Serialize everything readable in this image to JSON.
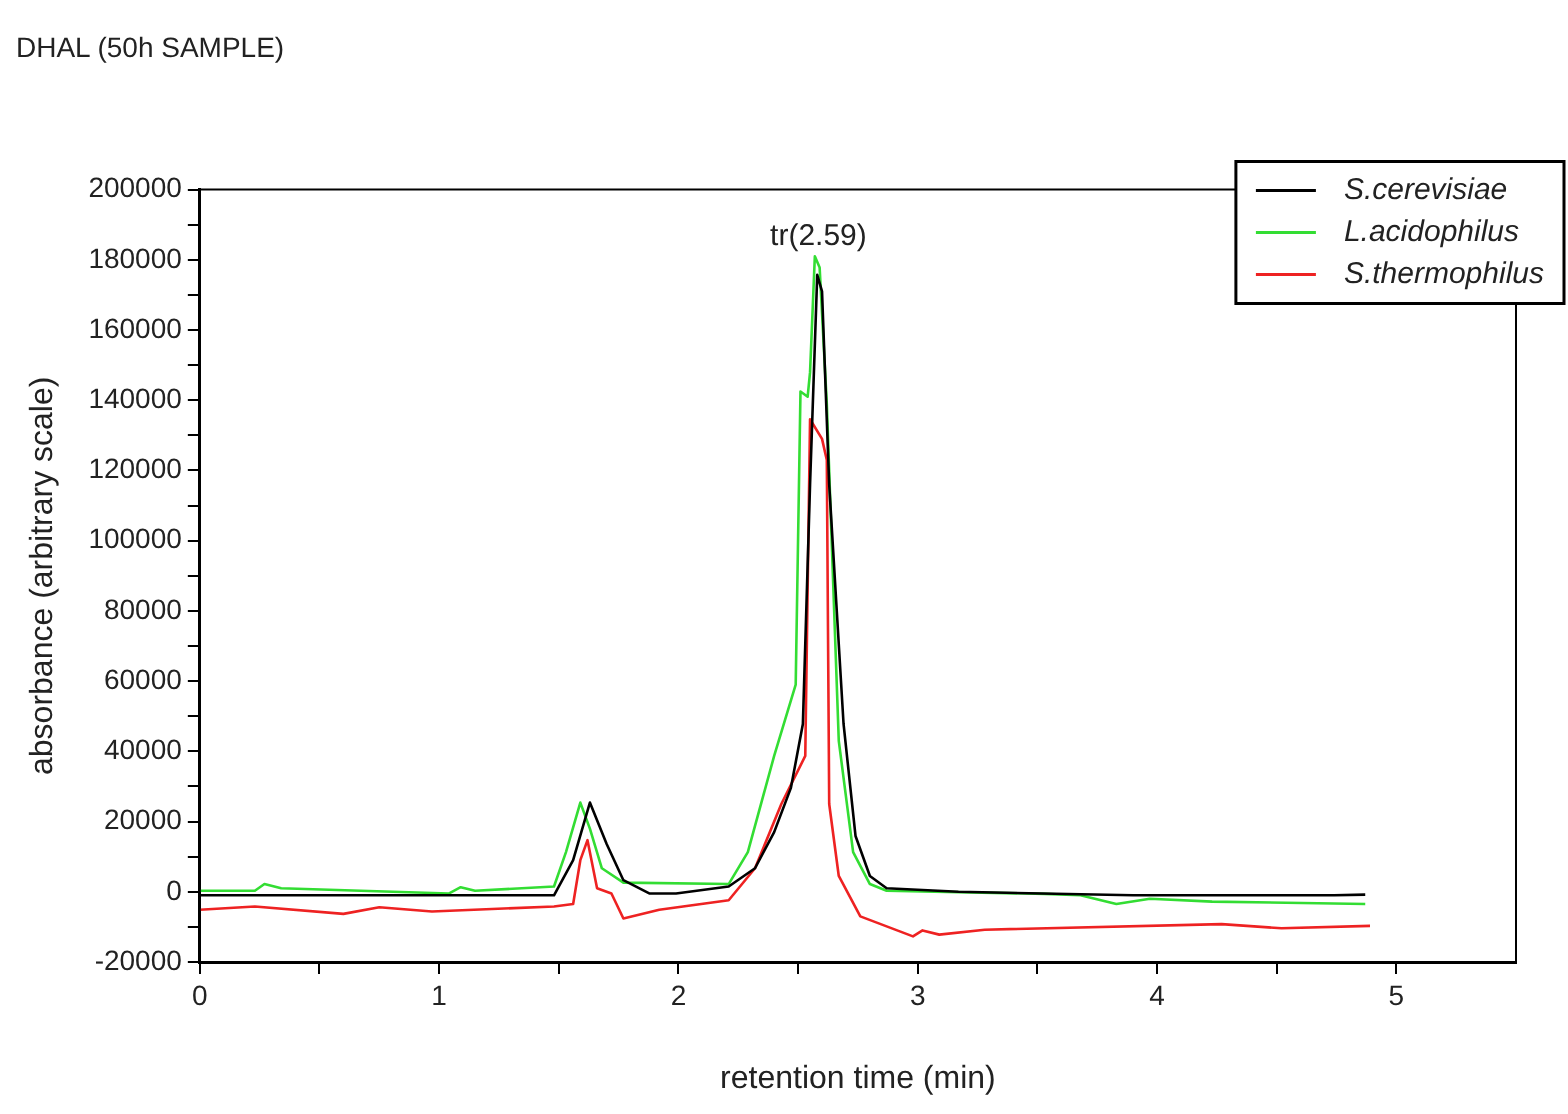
{
  "chart_data": {
    "type": "line",
    "title": "DHAL (50h SAMPLE)",
    "xlabel": "retention time (min)",
    "ylabel": "absorbance (arbitrary scale)",
    "xlim": [
      0,
      5.5
    ],
    "xticks": [
      0,
      {
        "value": 0.5,
        "label": null
      },
      1,
      {
        "value": 1.5,
        "label": null
      },
      2,
      {
        "value": 2.5,
        "label": null
      },
      3,
      {
        "value": 3.5,
        "label": null
      },
      4,
      {
        "value": 4.5,
        "label": null
      },
      5
    ],
    "ylim": [
      -20000,
      200000
    ],
    "yticks": [
      -20000,
      {
        "value": -10000,
        "label": null
      },
      0,
      {
        "value": 10000,
        "label": null
      },
      20000,
      {
        "value": 30000,
        "label": null
      },
      40000,
      {
        "value": 50000,
        "label": null
      },
      60000,
      {
        "value": 70000,
        "label": null
      },
      80000,
      {
        "value": 90000,
        "label": null
      },
      100000,
      {
        "value": 110000,
        "label": null
      },
      120000,
      {
        "value": 130000,
        "label": null
      },
      140000,
      {
        "value": 150000,
        "label": null
      },
      160000,
      {
        "value": 170000,
        "label": null
      },
      180000,
      {
        "value": 190000,
        "label": null
      },
      200000
    ],
    "grid": false,
    "legend": "top right",
    "marker": "none",
    "line_style": "solid",
    "annotations": [
      "tr(2.59)"
    ],
    "series": [
      {
        "name": "S.cerevisiae",
        "color": "#000000",
        "x": [
          0,
          1.48,
          1.56,
          1.63,
          1.7,
          1.77,
          1.88,
          1.99,
          2.21,
          2.32,
          2.4,
          2.47,
          2.52,
          2.55,
          2.58,
          2.6,
          2.63,
          2.69,
          2.74,
          2.8,
          2.87,
          3.17,
          3.9,
          4.74,
          4.87
        ],
        "values": [
          -1000,
          -1000,
          9000,
          25400,
          13600,
          3300,
          -500,
          -500,
          1500,
          6700,
          17000,
          29600,
          47800,
          116000,
          175700,
          171000,
          116000,
          47800,
          15900,
          4500,
          1000,
          0,
          -1000,
          -1000,
          -800
        ]
      },
      {
        "name": "L.acidophilus",
        "color": "#33dd33",
        "x": [
          0,
          0.23,
          0.27,
          0.34,
          1.04,
          1.09,
          1.15,
          1.48,
          1.53,
          1.59,
          1.63,
          1.68,
          1.77,
          2.21,
          2.29,
          2.4,
          2.49,
          2.51,
          2.54,
          2.55,
          2.57,
          2.59,
          2.62,
          2.67,
          2.73,
          2.8,
          2.87,
          3.53,
          3.68,
          3.83,
          3.97,
          4.23,
          4.87
        ],
        "values": [
          300,
          300,
          2200,
          1000,
          -500,
          1300,
          300,
          1500,
          11300,
          25400,
          18000,
          6700,
          2600,
          2200,
          11300,
          38700,
          59000,
          142500,
          141000,
          148000,
          181000,
          177800,
          139000,
          43000,
          11300,
          2200,
          300,
          -600,
          -1000,
          -3500,
          -2000,
          -2800,
          -3500
        ]
      },
      {
        "name": "S.thermophilus",
        "color": "#ee2222",
        "x": [
          0,
          0.23,
          0.6,
          0.75,
          0.97,
          1.48,
          1.56,
          1.59,
          1.62,
          1.66,
          1.72,
          1.77,
          1.92,
          2.21,
          2.32,
          2.43,
          2.53,
          2.55,
          2.6,
          2.62,
          2.63,
          2.67,
          2.76,
          2.98,
          3.02,
          3.09,
          3.28,
          4.27,
          4.52,
          4.89
        ],
        "values": [
          -5100,
          -4200,
          -6300,
          -4400,
          -5600,
          -4200,
          -3500,
          9000,
          14700,
          1000,
          -500,
          -7600,
          -5100,
          -2400,
          6700,
          25000,
          38700,
          134600,
          129000,
          123000,
          25000,
          4500,
          -7000,
          -12700,
          -11000,
          -12200,
          -10800,
          -9200,
          -10400,
          -9700
        ]
      }
    ]
  }
}
